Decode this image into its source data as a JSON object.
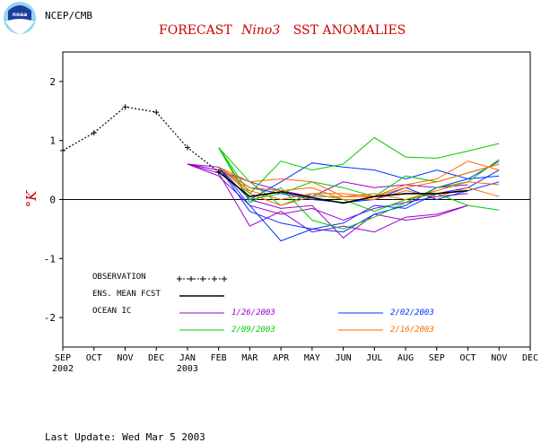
{
  "header": {
    "agency": "NCEP/CMB",
    "logo_text": "noaa",
    "title_part1": "FORECAST",
    "title_italic": "Nino3",
    "title_part2": "SST ANOMALIES",
    "ylabel": "°K",
    "footer": "Last Update: Wed Mar 5 2003"
  },
  "colors": {
    "title": "#cc0000",
    "observation": "#000000",
    "ensemble_mean": "#000000",
    "ic_1_26": "#9900cc",
    "ic_2_02": "#0033ff",
    "ic_2_09": "#00cc00",
    "ic_2_16": "#ff6600",
    "legend_label_1": "#9900cc",
    "legend_label_2": "#0033ff",
    "legend_label_3": "#00cc00",
    "legend_label_4": "#ff6600"
  },
  "chart_data": {
    "type": "line",
    "x_labels": [
      "SEP",
      "OCT",
      "NOV",
      "DEC",
      "JAN",
      "FEB",
      "MAR",
      "APR",
      "MAY",
      "JUN",
      "JUL",
      "AUG",
      "SEP",
      "OCT",
      "NOV",
      "DEC"
    ],
    "year_labels": [
      {
        "at": 0,
        "text": "2002"
      },
      {
        "at": 4,
        "text": "2003"
      }
    ],
    "y_ticks": [
      2,
      1,
      0,
      -1,
      -2
    ],
    "ylim": [
      -2.5,
      2.5
    ],
    "xlim": [
      0,
      15
    ],
    "zero_line": true,
    "legend": {
      "observation_label": "OBSERVATION",
      "ensemble_label": "ENS. MEAN FCST",
      "ocean_ic_label": "OCEAN IC",
      "ic_labels": [
        "1/26/2003",
        "2/02/2003",
        "2/09/2003",
        "2/16/2003"
      ]
    },
    "observation": {
      "x": [
        0,
        1,
        2,
        3,
        4,
        5
      ],
      "y": [
        0.83,
        1.13,
        1.57,
        1.48,
        0.88,
        0.47
      ]
    },
    "ensemble_mean": {
      "x": [
        5,
        6,
        7,
        8,
        9,
        10,
        11,
        12,
        13
      ],
      "y": [
        0.47,
        0.05,
        0.13,
        0.03,
        -0.06,
        0.05,
        0.1,
        0.1,
        0.15
      ]
    },
    "members": [
      {
        "group": "ic_1_26",
        "x": [
          4,
          5,
          6,
          7,
          8,
          9,
          10,
          11,
          12,
          13
        ],
        "y": [
          0.6,
          0.55,
          0.0,
          -0.15,
          -0.1,
          -0.65,
          -0.25,
          -0.35,
          -0.28,
          -0.1
        ]
      },
      {
        "group": "ic_1_26",
        "x": [
          4,
          5,
          6,
          7,
          8,
          9,
          10,
          11,
          12,
          13
        ],
        "y": [
          0.6,
          0.45,
          -0.45,
          -0.2,
          -0.55,
          -0.45,
          -0.55,
          -0.3,
          -0.25,
          -0.1
        ]
      },
      {
        "group": "ic_1_26",
        "x": [
          4,
          5,
          6,
          7,
          8,
          9,
          10,
          11,
          12,
          13
        ],
        "y": [
          0.6,
          0.5,
          0.3,
          0.15,
          0.05,
          0.3,
          0.2,
          0.25,
          0.2,
          0.25
        ]
      },
      {
        "group": "ic_1_26",
        "x": [
          4,
          5,
          6,
          7,
          8,
          9,
          10,
          11,
          12,
          13
        ],
        "y": [
          0.6,
          0.4,
          -0.1,
          -0.25,
          -0.15,
          -0.35,
          -0.15,
          -0.05,
          0.05,
          0.1
        ]
      },
      {
        "group": "ic_2_02",
        "x": [
          5,
          6,
          7,
          8,
          9,
          10,
          11,
          12,
          13,
          14
        ],
        "y": [
          0.55,
          -0.1,
          -0.7,
          -0.5,
          -0.55,
          -0.25,
          -0.1,
          0.2,
          0.35,
          0.4
        ]
      },
      {
        "group": "ic_2_02",
        "x": [
          5,
          6,
          7,
          8,
          9,
          10,
          11,
          12,
          13,
          14
        ],
        "y": [
          0.55,
          0.0,
          0.3,
          0.62,
          0.55,
          0.5,
          0.35,
          0.5,
          0.35,
          0.65
        ]
      },
      {
        "group": "ic_2_02",
        "x": [
          5,
          6,
          7,
          8,
          9,
          10,
          11,
          12,
          13,
          14
        ],
        "y": [
          0.55,
          0.2,
          0.1,
          0.0,
          -0.05,
          0.0,
          0.2,
          0.0,
          0.15,
          0.3
        ]
      },
      {
        "group": "ic_2_02",
        "x": [
          5,
          6,
          7,
          8,
          9,
          10,
          11,
          12,
          13,
          14
        ],
        "y": [
          0.55,
          -0.2,
          -0.4,
          -0.5,
          -0.4,
          -0.1,
          -0.15,
          0.1,
          0.2,
          0.5
        ]
      },
      {
        "group": "ic_2_09",
        "x": [
          5,
          6,
          7,
          8,
          9,
          10,
          11,
          12,
          13,
          14
        ],
        "y": [
          0.88,
          0.1,
          0.65,
          0.5,
          0.6,
          1.05,
          0.72,
          0.7,
          0.82,
          0.95
        ]
      },
      {
        "group": "ic_2_09",
        "x": [
          5,
          6,
          7,
          8,
          9,
          10,
          11,
          12,
          13,
          14
        ],
        "y": [
          0.88,
          0.3,
          -0.1,
          0.1,
          0.0,
          -0.2,
          0.0,
          0.1,
          -0.1,
          -0.18
        ]
      },
      {
        "group": "ic_2_09",
        "x": [
          5,
          6,
          7,
          8,
          9,
          10,
          11,
          12,
          13,
          14
        ],
        "y": [
          0.88,
          -0.05,
          0.2,
          -0.35,
          -0.5,
          -0.3,
          -0.05,
          0.2,
          0.3,
          0.68
        ]
      },
      {
        "group": "ic_2_09",
        "x": [
          5,
          6,
          7,
          8,
          9,
          10,
          11,
          12,
          13,
          14
        ],
        "y": [
          0.88,
          0.0,
          0.1,
          0.3,
          0.2,
          0.05,
          0.4,
          0.3,
          0.45,
          0.6
        ]
      },
      {
        "group": "ic_2_16",
        "x": [
          5,
          6,
          7,
          8,
          9,
          10,
          11,
          12,
          13,
          14
        ],
        "y": [
          0.55,
          0.3,
          0.35,
          0.3,
          0.05,
          0.05,
          0.25,
          0.35,
          0.65,
          0.5
        ]
      },
      {
        "group": "ic_2_16",
        "x": [
          5,
          6,
          7,
          8,
          9,
          10,
          11,
          12,
          13,
          14
        ],
        "y": [
          0.55,
          0.15,
          0.0,
          0.1,
          0.1,
          0.05,
          0.2,
          0.3,
          0.45,
          0.6
        ]
      },
      {
        "group": "ic_2_16",
        "x": [
          5,
          6,
          7,
          8,
          9,
          10,
          11,
          12,
          13,
          14
        ],
        "y": [
          0.55,
          0.1,
          -0.1,
          0.05,
          0.05,
          0.1,
          0.0,
          0.15,
          0.3,
          0.25
        ]
      },
      {
        "group": "ic_2_16",
        "x": [
          5,
          6,
          7,
          8,
          9,
          10,
          11,
          12,
          13,
          14
        ],
        "y": [
          0.55,
          0.2,
          0.15,
          0.2,
          0.0,
          0.0,
          0.15,
          0.05,
          0.2,
          0.05
        ]
      }
    ]
  }
}
